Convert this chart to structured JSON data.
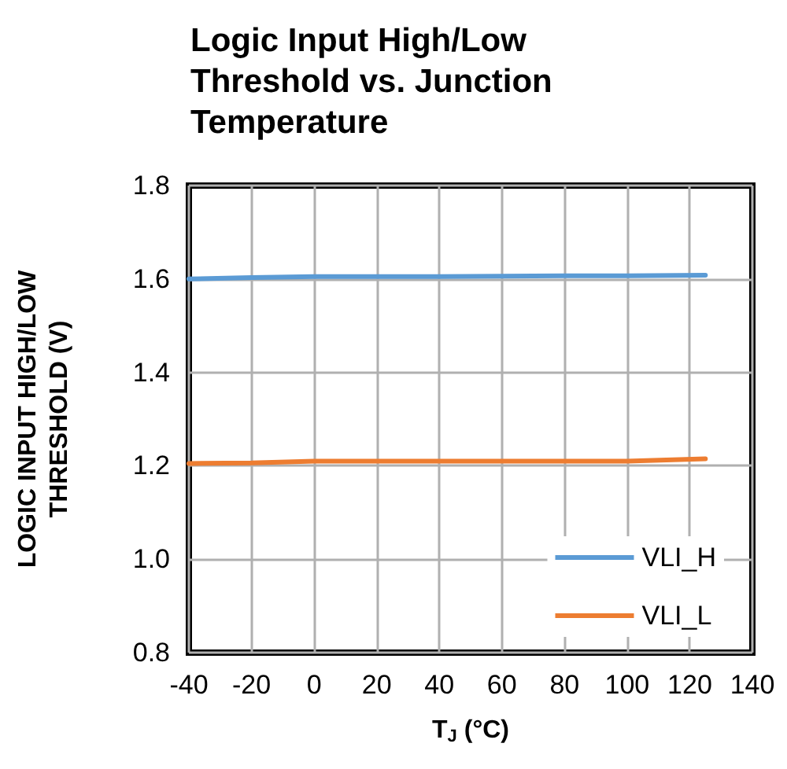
{
  "chart_data": {
    "type": "line",
    "title": "Logic Input High/Low Threshold vs. Junction Temperature",
    "xlabel": "T$_{J}$ (°C)",
    "ylabel": "LOGIC INPUT HIGH/LOW THRESHOLD (V)",
    "x": [
      -40,
      -20,
      0,
      20,
      40,
      60,
      80,
      100,
      125
    ],
    "series": [
      {
        "name": "VLI_H",
        "color": "#5b9bd5",
        "values": [
          1.6,
          1.603,
          1.605,
          1.605,
          1.605,
          1.606,
          1.607,
          1.607,
          1.608
        ]
      },
      {
        "name": "VLI_L",
        "color": "#ed7d31",
        "values": [
          1.205,
          1.206,
          1.21,
          1.21,
          1.21,
          1.21,
          1.21,
          1.21,
          1.215
        ]
      }
    ],
    "xlim": [
      -40,
      140
    ],
    "xticks": [
      -40,
      -20,
      0,
      20,
      40,
      60,
      80,
      100,
      120,
      140
    ],
    "ylim": [
      0.8,
      1.8
    ],
    "yticks": [
      {
        "value": 0.8,
        "label": "0.8"
      },
      {
        "value": 1,
        "label": "1.0"
      },
      {
        "value": 1.2,
        "label": "1.2"
      },
      {
        "value": 1.4,
        "label": "1.4"
      },
      {
        "value": 1.6,
        "label": "1.6"
      },
      {
        "value": 1.8,
        "label": "1.8"
      }
    ],
    "grid": true,
    "legend": "bottom right",
    "marker": "none",
    "line_style": "solid"
  }
}
